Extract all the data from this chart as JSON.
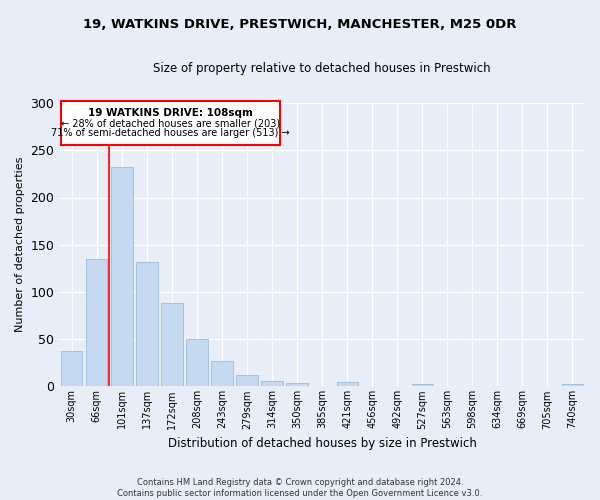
{
  "title": "19, WATKINS DRIVE, PRESTWICH, MANCHESTER, M25 0DR",
  "subtitle": "Size of property relative to detached houses in Prestwich",
  "xlabel": "Distribution of detached houses by size in Prestwich",
  "ylabel": "Number of detached properties",
  "bar_color": "#c5d9f0",
  "bar_edge_color": "#8ab4d8",
  "background_color": "#e8eef8",
  "categories": [
    "30sqm",
    "66sqm",
    "101sqm",
    "137sqm",
    "172sqm",
    "208sqm",
    "243sqm",
    "279sqm",
    "314sqm",
    "350sqm",
    "385sqm",
    "421sqm",
    "456sqm",
    "492sqm",
    "527sqm",
    "563sqm",
    "598sqm",
    "634sqm",
    "669sqm",
    "705sqm",
    "740sqm"
  ],
  "values": [
    37,
    135,
    232,
    132,
    88,
    50,
    27,
    12,
    6,
    4,
    0,
    5,
    0,
    0,
    3,
    0,
    0,
    0,
    0,
    0,
    3
  ],
  "ylim": [
    0,
    300
  ],
  "yticks": [
    0,
    50,
    100,
    150,
    200,
    250,
    300
  ],
  "property_label": "19 WATKINS DRIVE: 108sqm",
  "annotation_line1": "← 28% of detached houses are smaller (203)",
  "annotation_line2": "71% of semi-detached houses are larger (513) →",
  "vline_x": 1.5,
  "footnote1": "Contains HM Land Registry data © Crown copyright and database right 2024.",
  "footnote2": "Contains public sector information licensed under the Open Government Licence v3.0."
}
